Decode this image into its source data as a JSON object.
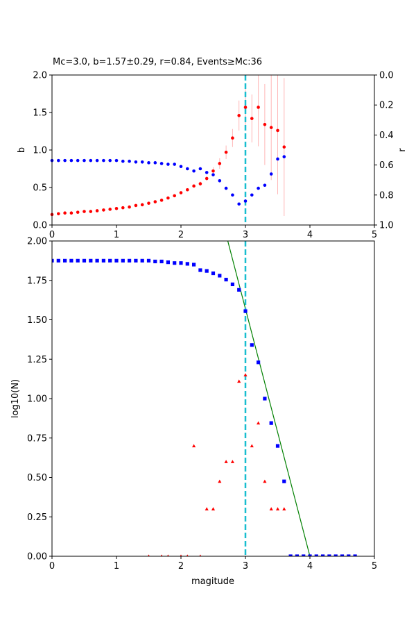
{
  "chart_data": [
    {
      "type": "scatter",
      "title": "Mc=3.0, b=1.57±0.29, r=0.84, Events≥Mc:36",
      "xlabel": "",
      "ylabel": "b",
      "y2label": "r",
      "xlim": [
        0,
        5
      ],
      "ylim": [
        0,
        2.0
      ],
      "y2lim": [
        1.0,
        0.0
      ],
      "y2_inverted": true,
      "xticks": [
        "0",
        "1",
        "2",
        "3",
        "4",
        "5"
      ],
      "yticks": [
        "0.0",
        "0.5",
        "1.0",
        "1.5",
        "2.0"
      ],
      "y2ticks": [
        "0.0",
        "0.2",
        "0.4",
        "0.6",
        "0.8",
        "1.0"
      ],
      "mc_line": 3.0,
      "colors": {
        "b": "#ff0000",
        "r": "#0000ff",
        "err": "#ffb6b6",
        "mc": "#17becf"
      },
      "b_series": {
        "x": [
          0.0,
          0.1,
          0.2,
          0.3,
          0.4,
          0.5,
          0.6,
          0.7,
          0.8,
          0.9,
          1.0,
          1.1,
          1.2,
          1.3,
          1.4,
          1.5,
          1.6,
          1.7,
          1.8,
          1.9,
          2.0,
          2.1,
          2.2,
          2.3,
          2.4,
          2.5,
          2.6,
          2.7,
          2.8,
          2.9,
          3.0,
          3.1,
          3.2,
          3.3,
          3.4,
          3.5,
          3.6
        ],
        "y": [
          0.14,
          0.15,
          0.16,
          0.16,
          0.17,
          0.18,
          0.18,
          0.19,
          0.2,
          0.21,
          0.22,
          0.23,
          0.24,
          0.26,
          0.27,
          0.29,
          0.31,
          0.33,
          0.36,
          0.39,
          0.43,
          0.47,
          0.52,
          0.55,
          0.62,
          0.72,
          0.82,
          0.97,
          1.16,
          1.46,
          1.57,
          1.42,
          1.57,
          1.34,
          1.3,
          1.26,
          1.04
        ],
        "err": [
          0.01,
          0.01,
          0.01,
          0.01,
          0.01,
          0.01,
          0.01,
          0.01,
          0.01,
          0.01,
          0.01,
          0.01,
          0.01,
          0.01,
          0.01,
          0.01,
          0.01,
          0.01,
          0.01,
          0.01,
          0.02,
          0.02,
          0.02,
          0.03,
          0.03,
          0.05,
          0.07,
          0.09,
          0.12,
          0.2,
          0.29,
          0.32,
          0.52,
          0.54,
          0.7,
          0.85,
          0.92
        ]
      },
      "r_series": {
        "x": [
          0.0,
          0.1,
          0.2,
          0.3,
          0.4,
          0.5,
          0.6,
          0.7,
          0.8,
          0.9,
          1.0,
          1.1,
          1.2,
          1.3,
          1.4,
          1.5,
          1.6,
          1.7,
          1.8,
          1.9,
          2.0,
          2.1,
          2.2,
          2.3,
          2.4,
          2.5,
          2.6,
          2.7,
          2.8,
          2.9,
          3.0,
          3.1,
          3.2,
          3.3,
          3.4,
          3.5,
          3.6
        ],
        "y": [
          0.57,
          0.57,
          0.57,
          0.57,
          0.57,
          0.57,
          0.57,
          0.57,
          0.57,
          0.57,
          0.57,
          0.575,
          0.575,
          0.58,
          0.58,
          0.585,
          0.585,
          0.59,
          0.595,
          0.595,
          0.61,
          0.625,
          0.64,
          0.625,
          0.65,
          0.665,
          0.705,
          0.755,
          0.8,
          0.86,
          0.84,
          0.8,
          0.755,
          0.735,
          0.66,
          0.56,
          0.545
        ]
      }
    },
    {
      "type": "scatter",
      "title": "",
      "xlabel": "magitude",
      "ylabel": "log10(N)",
      "xlim": [
        0,
        5
      ],
      "ylim": [
        0,
        2.0
      ],
      "xticks": [
        "0",
        "1",
        "2",
        "3",
        "4",
        "5"
      ],
      "yticks": [
        "0.00",
        "0.25",
        "0.50",
        "0.75",
        "1.00",
        "1.25",
        "1.50",
        "1.75",
        "2.00"
      ],
      "mc_line": 3.0,
      "colors": {
        "cumulative": "#0000ff",
        "incremental": "#ff0000",
        "fit": "#008000",
        "mc": "#17becf"
      },
      "fit_line": {
        "a": 6.28,
        "b": 1.57
      },
      "cumulative": {
        "x": [
          0.0,
          0.1,
          0.2,
          0.3,
          0.4,
          0.5,
          0.6,
          0.7,
          0.8,
          0.9,
          1.0,
          1.1,
          1.2,
          1.3,
          1.4,
          1.5,
          1.6,
          1.7,
          1.8,
          1.9,
          2.0,
          2.1,
          2.2,
          2.3,
          2.4,
          2.5,
          2.6,
          2.7,
          2.8,
          2.9,
          3.0,
          3.1,
          3.2,
          3.3,
          3.4,
          3.5,
          3.6,
          3.7,
          3.8,
          3.9,
          4.0,
          4.1,
          4.2,
          4.3,
          4.4,
          4.5,
          4.6,
          4.7
        ],
        "y": [
          1.875,
          1.875,
          1.875,
          1.875,
          1.875,
          1.875,
          1.875,
          1.875,
          1.875,
          1.875,
          1.875,
          1.875,
          1.875,
          1.875,
          1.875,
          1.875,
          1.87,
          1.87,
          1.865,
          1.86,
          1.86,
          1.855,
          1.85,
          1.815,
          1.81,
          1.795,
          1.78,
          1.755,
          1.725,
          1.69,
          1.555,
          1.34,
          1.23,
          1.0,
          0.845,
          0.7,
          0.475,
          0,
          0,
          0,
          0,
          0,
          0,
          0,
          0,
          0,
          0,
          0
        ]
      },
      "incremental": {
        "x": [
          1.5,
          1.7,
          1.8,
          2.0,
          2.1,
          2.2,
          2.3,
          2.4,
          2.5,
          2.6,
          2.7,
          2.8,
          2.9,
          3.0,
          3.1,
          3.2,
          3.3,
          3.4,
          3.5,
          3.6
        ],
        "y": [
          0,
          0,
          0,
          0,
          0,
          0.7,
          0,
          0.3,
          0.3,
          0.475,
          0.6,
          0.6,
          1.11,
          1.15,
          0.7,
          0.845,
          0.475,
          0.3,
          0.3,
          0.3
        ]
      }
    }
  ]
}
